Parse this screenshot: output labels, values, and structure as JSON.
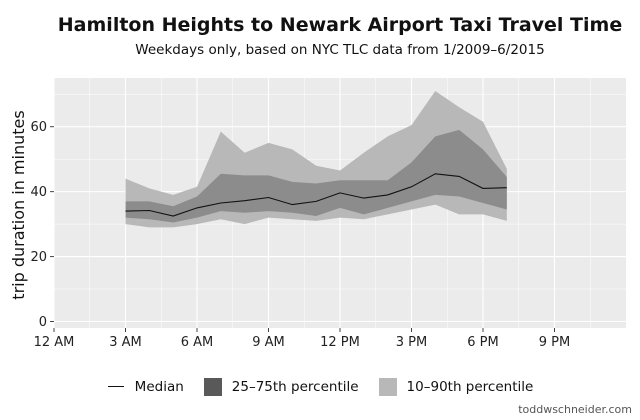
{
  "header": {
    "title": "Hamilton Heights to Newark Airport Taxi Travel Time",
    "subtitle": "Weekdays only, based on NYC TLC data from 1/2009–6/2015"
  },
  "credit": "toddwschneider.com",
  "colors": {
    "panel_bg": "#ebebeb",
    "grid": "#ffffff",
    "band_outer": "#b8b8b8",
    "band_inner": "#8c8c8c",
    "median": "#111111"
  },
  "chart_data": {
    "type": "area",
    "ylabel": "trip duration in minutes",
    "xlabel": "",
    "xlim": [
      0,
      24
    ],
    "ylim": [
      -2,
      75
    ],
    "x_ticks": [
      0,
      3,
      6,
      9,
      12,
      15,
      18,
      21
    ],
    "x_tick_labels": [
      "12 AM",
      "3 AM",
      "6 AM",
      "9 AM",
      "12 PM",
      "3 PM",
      "6 PM",
      "9 PM"
    ],
    "y_ticks": [
      0,
      20,
      40,
      60
    ],
    "y_tick_labels": [
      "0",
      "20",
      "40",
      "60"
    ],
    "grid": true,
    "legend_position": "bottom",
    "x": [
      3,
      4,
      5,
      6,
      7,
      8,
      9,
      10,
      11,
      12,
      13,
      14,
      15,
      16,
      17,
      18,
      19
    ],
    "series": [
      {
        "name": "10–90th percentile",
        "low": [
          30,
          29,
          29,
          30,
          31.5,
          30,
          32,
          31.5,
          31,
          32,
          31.5,
          33,
          34.5,
          36,
          33,
          33,
          31
        ],
        "high": [
          44,
          41,
          39,
          41.5,
          58.5,
          52,
          55,
          53,
          48,
          46.5,
          52,
          57,
          60.5,
          71,
          66,
          61.5,
          47
        ]
      },
      {
        "name": "25–75th percentile",
        "low": [
          32,
          31.5,
          30.5,
          32,
          34,
          33.5,
          34,
          33.5,
          32.5,
          35,
          33,
          35,
          37,
          39,
          38.5,
          36.5,
          34.5
        ],
        "high": [
          37,
          37,
          35.5,
          38.5,
          45.5,
          45,
          45,
          43,
          42.5,
          43.5,
          43.5,
          43.5,
          49,
          57,
          59,
          53,
          44.5
        ]
      },
      {
        "name": "Median",
        "values": [
          34,
          34.2,
          32.5,
          35,
          36.5,
          37.2,
          38.2,
          36,
          37,
          39.6,
          38,
          39,
          41.5,
          45.5,
          44.7,
          41,
          41.2
        ]
      }
    ]
  }
}
